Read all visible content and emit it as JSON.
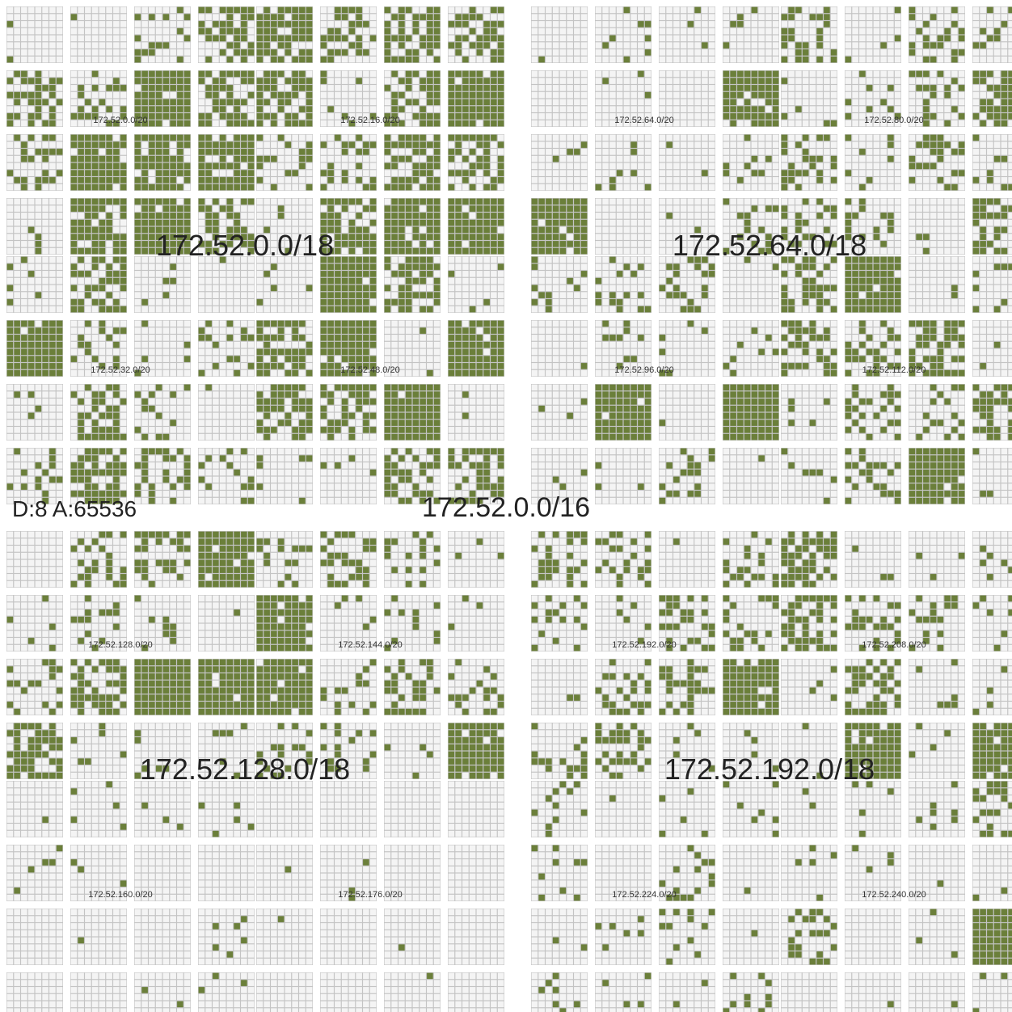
{
  "colors": {
    "background": "#ffffff",
    "grid_line": "#c4c4c4",
    "empty_cell": "#f4f4f4",
    "used_cell": "#6b7f3a",
    "label": "#222222"
  },
  "header": {
    "stats_label": "D:8 A:65536",
    "network_label": "172.52.0.0/16"
  },
  "quadrants": [
    {
      "label": "172.52.0.0/18",
      "subnets": [
        "172.52.0.0/20",
        "172.52.16.0/20",
        "172.52.32.0/20",
        "172.52.48.0/20"
      ],
      "density": [
        0.5,
        0.45,
        0.35,
        0.4
      ]
    },
    {
      "label": "172.52.64.0/18",
      "subnets": [
        "172.52.64.0/20",
        "172.52.80.0/20",
        "172.52.96.0/20",
        "172.52.112.0/20"
      ],
      "density": [
        0.12,
        0.4,
        0.18,
        0.38
      ]
    },
    {
      "label": "172.52.128.0/18",
      "subnets": [
        "172.52.128.0/20",
        "172.52.144.0/20",
        "172.52.160.0/20",
        "172.52.176.0/20"
      ],
      "density": [
        0.38,
        0.28,
        0.05,
        0.01
      ]
    },
    {
      "label": "172.52.192.0/18",
      "subnets": [
        "172.52.192.0/20",
        "172.52.208.0/20",
        "172.52.224.0/20",
        "172.52.240.0/20"
      ],
      "density": [
        0.3,
        0.45,
        0.12,
        0.22
      ]
    }
  ]
}
